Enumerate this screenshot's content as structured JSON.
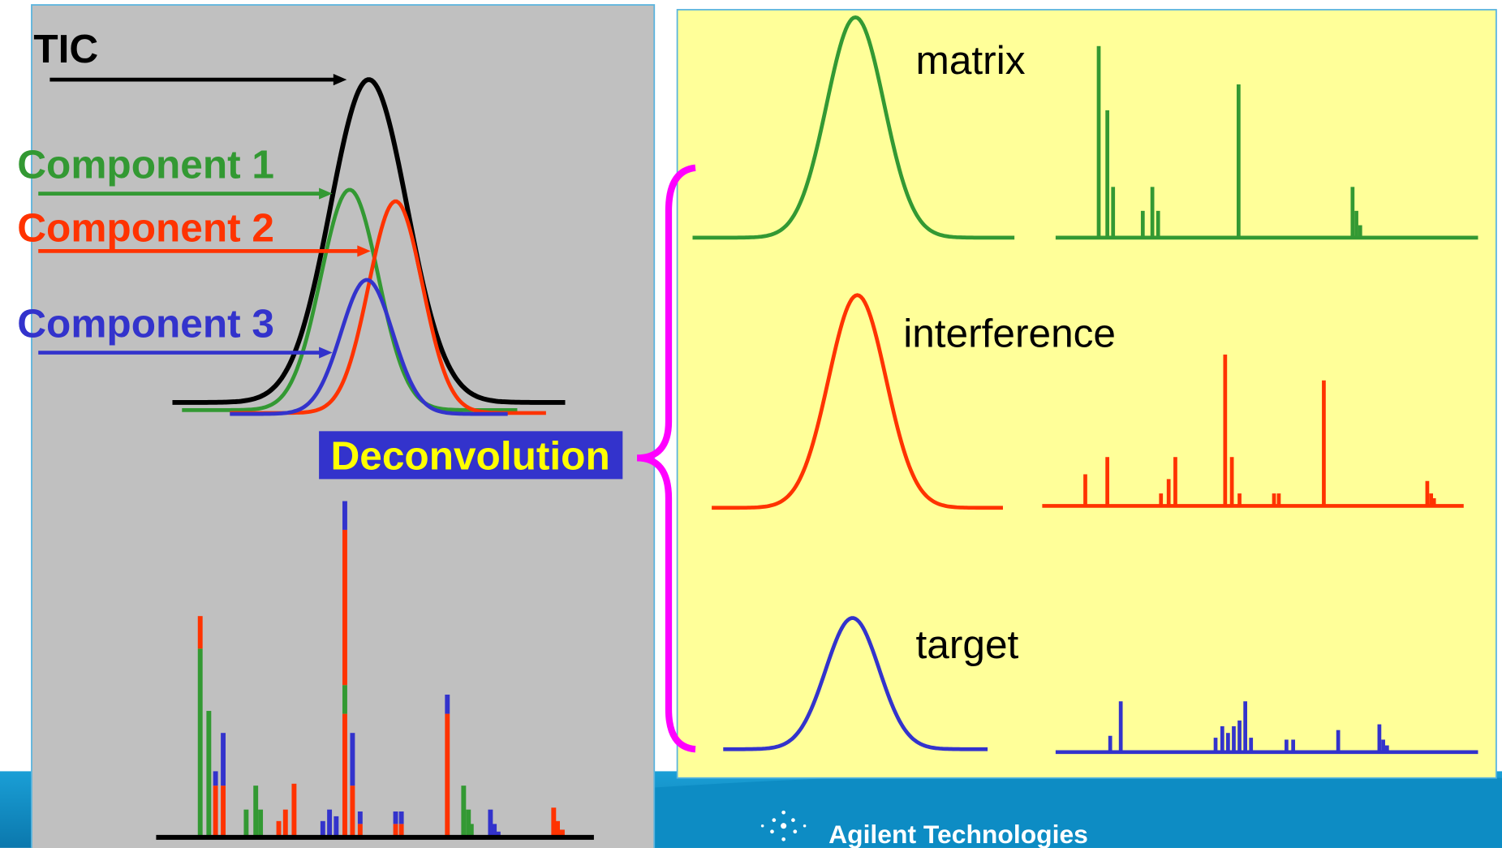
{
  "left_panel": {
    "tic_label": "TIC",
    "components": [
      "Component 1",
      "Component 2",
      "Component 3"
    ],
    "process": "Deconvolution"
  },
  "right_panel": {
    "components": [
      "matrix",
      "interference",
      "target"
    ]
  },
  "footer": {
    "brand": "Agilent Technologies"
  }
}
